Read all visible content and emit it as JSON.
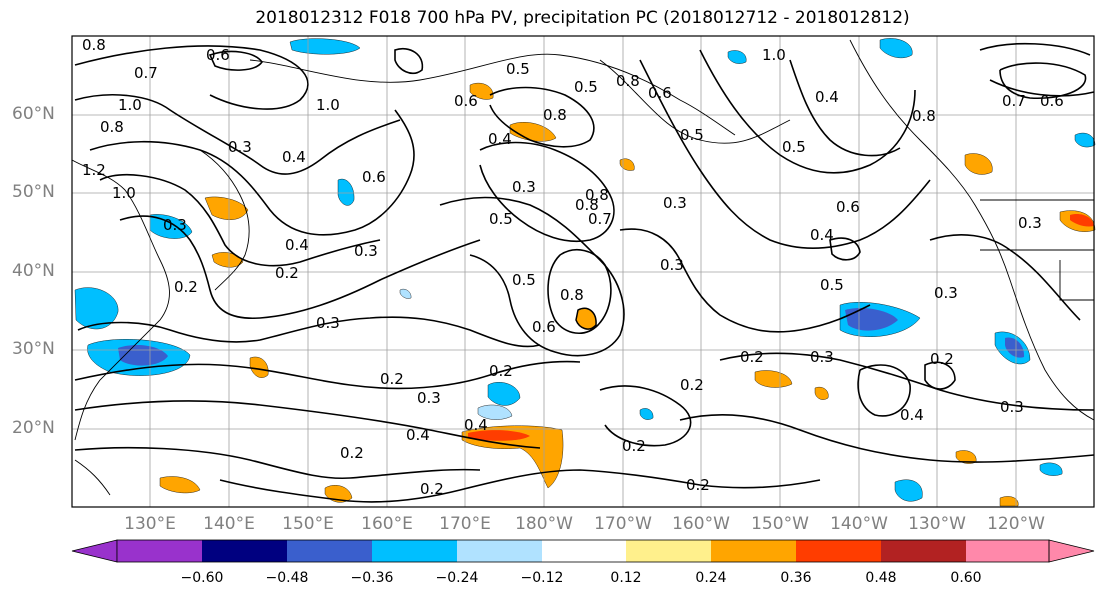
{
  "title": "2018012312 F018 700 hPa PV, precipitation PC (2018012712 - 2018012812)",
  "lat_labels": [
    "60°N",
    "50°N",
    "40°N",
    "30°N",
    "20°N"
  ],
  "lon_labels": [
    "130°E",
    "140°E",
    "150°E",
    "160°E",
    "170°E",
    "180°W",
    "170°W",
    "160°W",
    "150°W",
    "140°W",
    "130°W",
    "120°W"
  ],
  "colorbar": {
    "ticks": [
      "−0.60",
      "−0.48",
      "−0.36",
      "−0.24",
      "−0.12",
      "0.12",
      "0.24",
      "0.36",
      "0.48",
      "0.60"
    ],
    "colors": [
      "#9932cc",
      "#000080",
      "#3a5fcd",
      "#00bfff",
      "#b0e2ff",
      "#ffffff",
      "#fff08c",
      "#ffa500",
      "#ff3d00",
      "#b22222",
      "#ff88aa"
    ]
  },
  "contour_labels": [
    "0.8",
    "0.6",
    "0.7",
    "1.0",
    "0.8",
    "1.2",
    "1.0",
    "0.3",
    "0.4",
    "0.6",
    "1.0",
    "0.6",
    "0.5",
    "0.4",
    "0.5",
    "0.8",
    "0.3",
    "0.8",
    "0.7",
    "0.5",
    "0.3",
    "0.4",
    "0.3",
    "0.2",
    "0.3",
    "0.5",
    "0.8",
    "0.6",
    "0.8",
    "0.6",
    "1.0",
    "0.5",
    "0.4",
    "0.6",
    "0.5",
    "0.3",
    "0.2",
    "0.2",
    "0.2",
    "0.3",
    "0.4",
    "0.2",
    "0.2",
    "0.2",
    "0.2",
    "0.3",
    "0.2",
    "0.3",
    "0.4",
    "0.3",
    "0.2",
    "0.5",
    "0.8",
    "0.4",
    "0.8",
    "0.4",
    "0.3",
    "0.7",
    "0.6",
    "0.3",
    "0.2"
  ]
}
